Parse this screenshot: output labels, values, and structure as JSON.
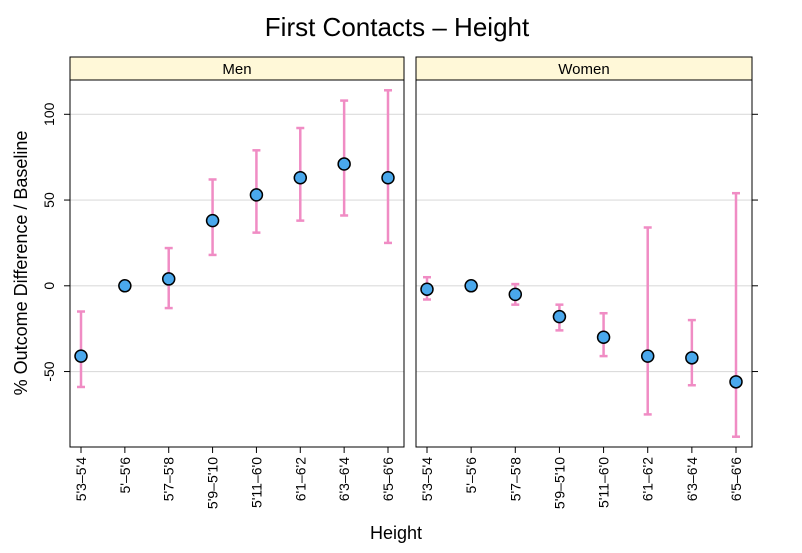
{
  "chart_data": {
    "type": "scatter",
    "subtype": "dot-with-error-bars",
    "title": "First Contacts – Height",
    "xlabel": "Height",
    "ylabel": "% Outcome Difference / Baseline",
    "ylim": [
      -94,
      120
    ],
    "yticks": [
      -50,
      0,
      50,
      100
    ],
    "grid": "horizontal",
    "categories": [
      "5'3–5'4",
      "5'–5'6",
      "5'7–5'8",
      "5'9–5'10",
      "5'11–6'0",
      "6'1–6'2",
      "6'3–6'4",
      "6'5–6'6"
    ],
    "panels": [
      {
        "name": "Men",
        "values": [
          -41,
          0,
          4,
          38,
          53,
          63,
          71,
          63
        ],
        "lower": [
          -59,
          0,
          -13,
          18,
          31,
          38,
          41,
          25
        ],
        "upper": [
          -15,
          0,
          22,
          62,
          79,
          92,
          108,
          114
        ]
      },
      {
        "name": "Women",
        "values": [
          -2,
          0,
          -5,
          -18,
          -30,
          -41,
          -42,
          -56
        ],
        "lower": [
          -8,
          0,
          -11,
          -26,
          -41,
          -75,
          -58,
          -88
        ],
        "upper": [
          5,
          0,
          1,
          -11,
          -16,
          34,
          -20,
          54
        ]
      }
    ],
    "colors": {
      "point_fill": "#4aa8ec",
      "point_stroke": "#000000",
      "error_bar": "#f08cc4",
      "strip_bg": "#fff8d8",
      "grid": "#dcdcdc"
    }
  }
}
